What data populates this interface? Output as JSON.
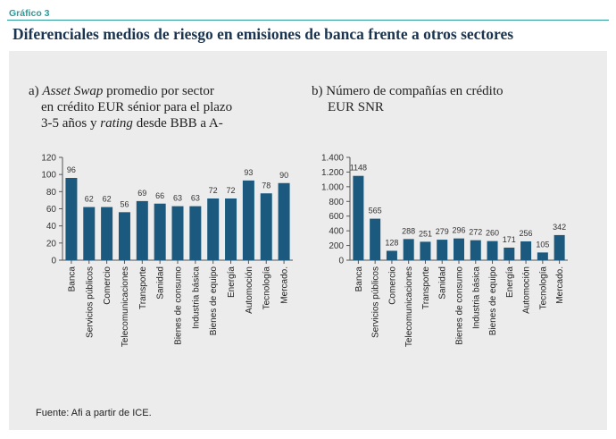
{
  "header": {
    "figure_label": "Gráfico 3",
    "title": "Diferenciales medios de riesgo en emisiones de banca frente a otros sectores"
  },
  "colors": {
    "bar": "#1b5a7e",
    "accent": "#2a9a9a",
    "panel": "#ececec"
  },
  "source": "Fuente: Afi a partir de ICE.",
  "chart_data": [
    {
      "type": "bar",
      "title_lines": [
        "a) Asset Swap promedio por sector",
        "en crédito EUR sénior para el plazo",
        "3-5 años y rating desde BBB a A-"
      ],
      "categories": [
        "Banca",
        "Servicios públicos",
        "Comercio",
        "Telecomunicaciones",
        "Transporte",
        "Sanidad",
        "Bienes de consumo",
        "Industria básica",
        "Bienes de equipo",
        "Energía",
        "Automoción",
        "Tecnología",
        "Mercado."
      ],
      "values": [
        96,
        62,
        62,
        56,
        69,
        66,
        63,
        63,
        72,
        72,
        93,
        78,
        90
      ],
      "ylim": [
        0,
        120
      ],
      "yticks": [
        0,
        20,
        40,
        60,
        80,
        100,
        120
      ],
      "ytick_labels": [
        "0",
        "20",
        "40",
        "60",
        "80",
        "100",
        "120"
      ],
      "xlabel": "",
      "ylabel": ""
    },
    {
      "type": "bar",
      "title_lines": [
        "b) Número de compañías en crédito",
        "EUR SNR"
      ],
      "categories": [
        "Banca",
        "Servicios públicos",
        "Comercio",
        "Telecomunicaciones",
        "Transporte",
        "Sanidad",
        "Bienes de consumo",
        "Industria básica",
        "Bienes de equipo",
        "Energía",
        "Automoción",
        "Tecnología",
        "Mercado."
      ],
      "values": [
        1148,
        565,
        128,
        288,
        251,
        279,
        296,
        272,
        260,
        171,
        256,
        105,
        342
      ],
      "ylim": [
        0,
        1400
      ],
      "yticks": [
        0,
        200,
        400,
        600,
        800,
        1000,
        1200,
        1400
      ],
      "ytick_labels": [
        "0",
        "200",
        "400",
        "600",
        "800",
        "1.000",
        "1.200",
        "1.400"
      ],
      "xlabel": "",
      "ylabel": ""
    }
  ]
}
